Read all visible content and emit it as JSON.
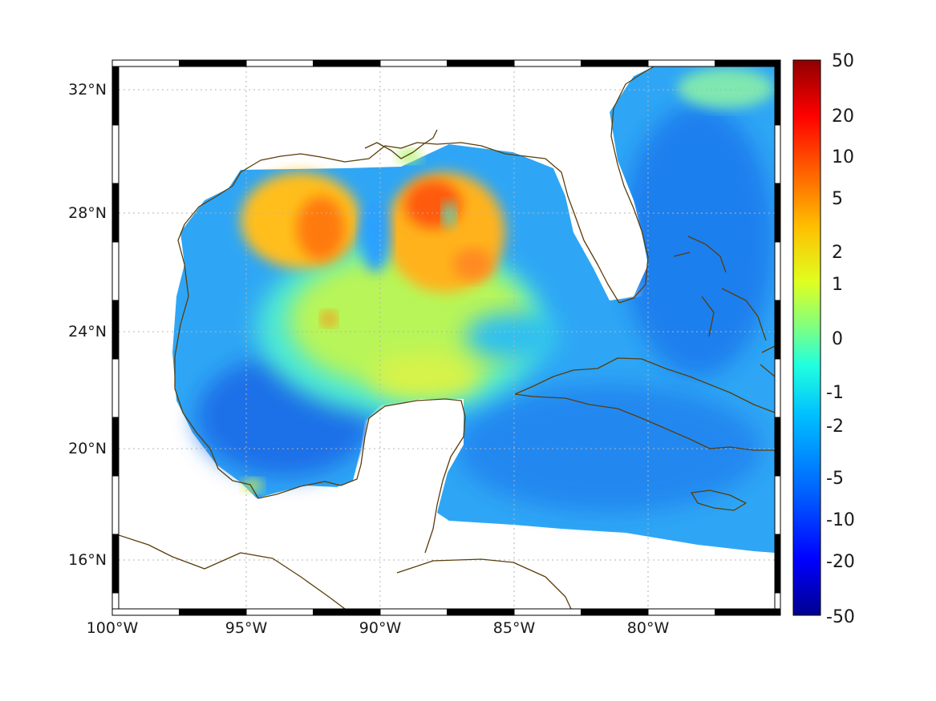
{
  "map": {
    "x_tick_labels": [
      "100°W",
      "95°W",
      "90°W",
      "85°W",
      "80°W"
    ],
    "y_tick_labels": [
      "32°N",
      "28°N",
      "24°N",
      "20°N",
      "16°N"
    ],
    "lon_range": [
      -100,
      -75
    ],
    "lat_range": [
      14.3,
      33
    ]
  },
  "colorbar": {
    "tick_labels": [
      "50",
      "20",
      "10",
      "5",
      "2",
      "1",
      "0",
      "-1",
      "-2",
      "-5",
      "-10",
      "-20",
      "-50"
    ],
    "colormap": [
      "#00008f",
      "#0000ff",
      "#0060ff",
      "#00bfff",
      "#20ffdf",
      "#80ff80",
      "#dfff20",
      "#ffbf00",
      "#ff6000",
      "#ff0000",
      "#8f0000"
    ]
  },
  "colors": {
    "coastline": "#5a3d0a",
    "frame": "#000000"
  }
}
